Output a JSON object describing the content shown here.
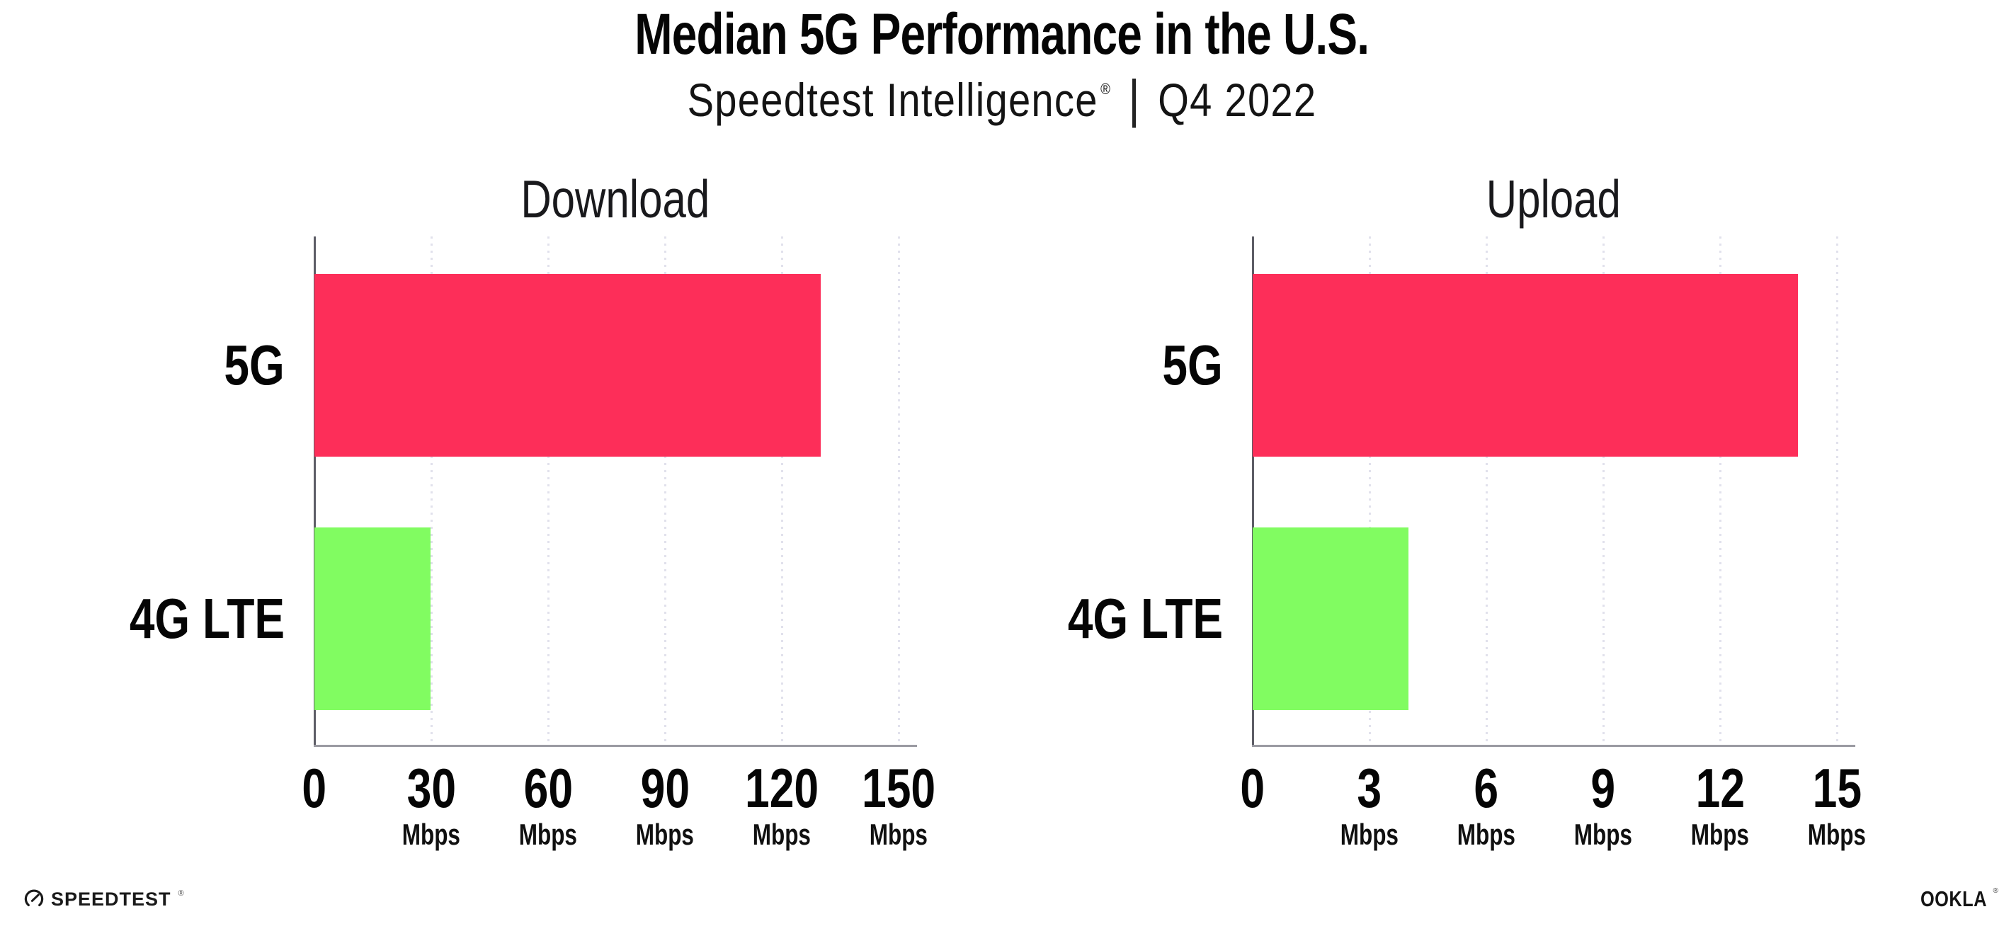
{
  "header": {
    "title": "Median 5G Performance in the U.S.",
    "subtitle": {
      "brand": "Speedtest Intelligence",
      "registered_mark": "®",
      "separator": "|",
      "period": "Q4 2022"
    }
  },
  "colors": {
    "bar_5g": "#fd2e59",
    "bar_4g_lte": "#81fc61",
    "gridline": "#e1e1ec",
    "x_axis": "#9a9aa2",
    "y_axis": "#5d5d66"
  },
  "chart_data": [
    {
      "type": "bar",
      "orientation": "horizontal",
      "title": "Download",
      "categories": [
        "5G",
        "4G LTE"
      ],
      "values": [
        130,
        29.8
      ],
      "unit": "Mbps",
      "xlim": [
        0,
        150
      ],
      "xticks": [
        0,
        30,
        60,
        90,
        120,
        150
      ],
      "tick_unit_label": "Mbps",
      "bar_colors": [
        "#fd2e59",
        "#81fc61"
      ],
      "grid": "vertical-dotted",
      "legend": "none"
    },
    {
      "type": "bar",
      "orientation": "horizontal",
      "title": "Upload",
      "categories": [
        "5G",
        "4G LTE"
      ],
      "values": [
        14,
        4
      ],
      "unit": "Mbps",
      "xlim": [
        0,
        15
      ],
      "xticks": [
        0,
        3,
        6,
        9,
        12,
        15
      ],
      "tick_unit_label": "Mbps",
      "bar_colors": [
        "#fd2e59",
        "#81fc61"
      ],
      "grid": "vertical-dotted",
      "legend": "none"
    }
  ],
  "footer": {
    "speedtest_logo": {
      "text": "SPEEDTEST",
      "mark": "®",
      "icon": "speedtest-gauge-icon"
    },
    "ookla_logo": {
      "text": "OOKLA",
      "mark": "®"
    }
  }
}
